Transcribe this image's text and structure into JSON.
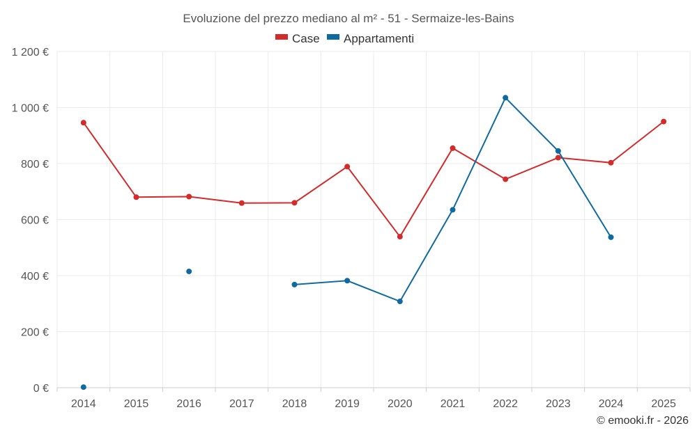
{
  "chart_data": {
    "type": "line",
    "title": "Evoluzione del prezzo mediano al m² - 51 - Sermaize-les-Bains",
    "categories": [
      "2014",
      "2015",
      "2016",
      "2017",
      "2018",
      "2019",
      "2020",
      "2021",
      "2022",
      "2023",
      "2024",
      "2025"
    ],
    "ylim": [
      0,
      1200
    ],
    "yticks": [
      0,
      200,
      400,
      600,
      800,
      1000,
      1200
    ],
    "ytick_labels": [
      "0 €",
      "200 €",
      "400 €",
      "600 €",
      "800 €",
      "1 000 €",
      "1 200 €"
    ],
    "series": [
      {
        "name": "Case",
        "color": "#d32a2a",
        "values": [
          946,
          680,
          682,
          659,
          660,
          789,
          539,
          855,
          744,
          821,
          803,
          950
        ]
      },
      {
        "name": "Appartamenti",
        "color": "#0e6aa0",
        "values": [
          2,
          null,
          415,
          null,
          368,
          382,
          308,
          635,
          1035,
          845,
          537,
          null
        ]
      }
    ],
    "credit": "© emooki.fr - 2026"
  }
}
